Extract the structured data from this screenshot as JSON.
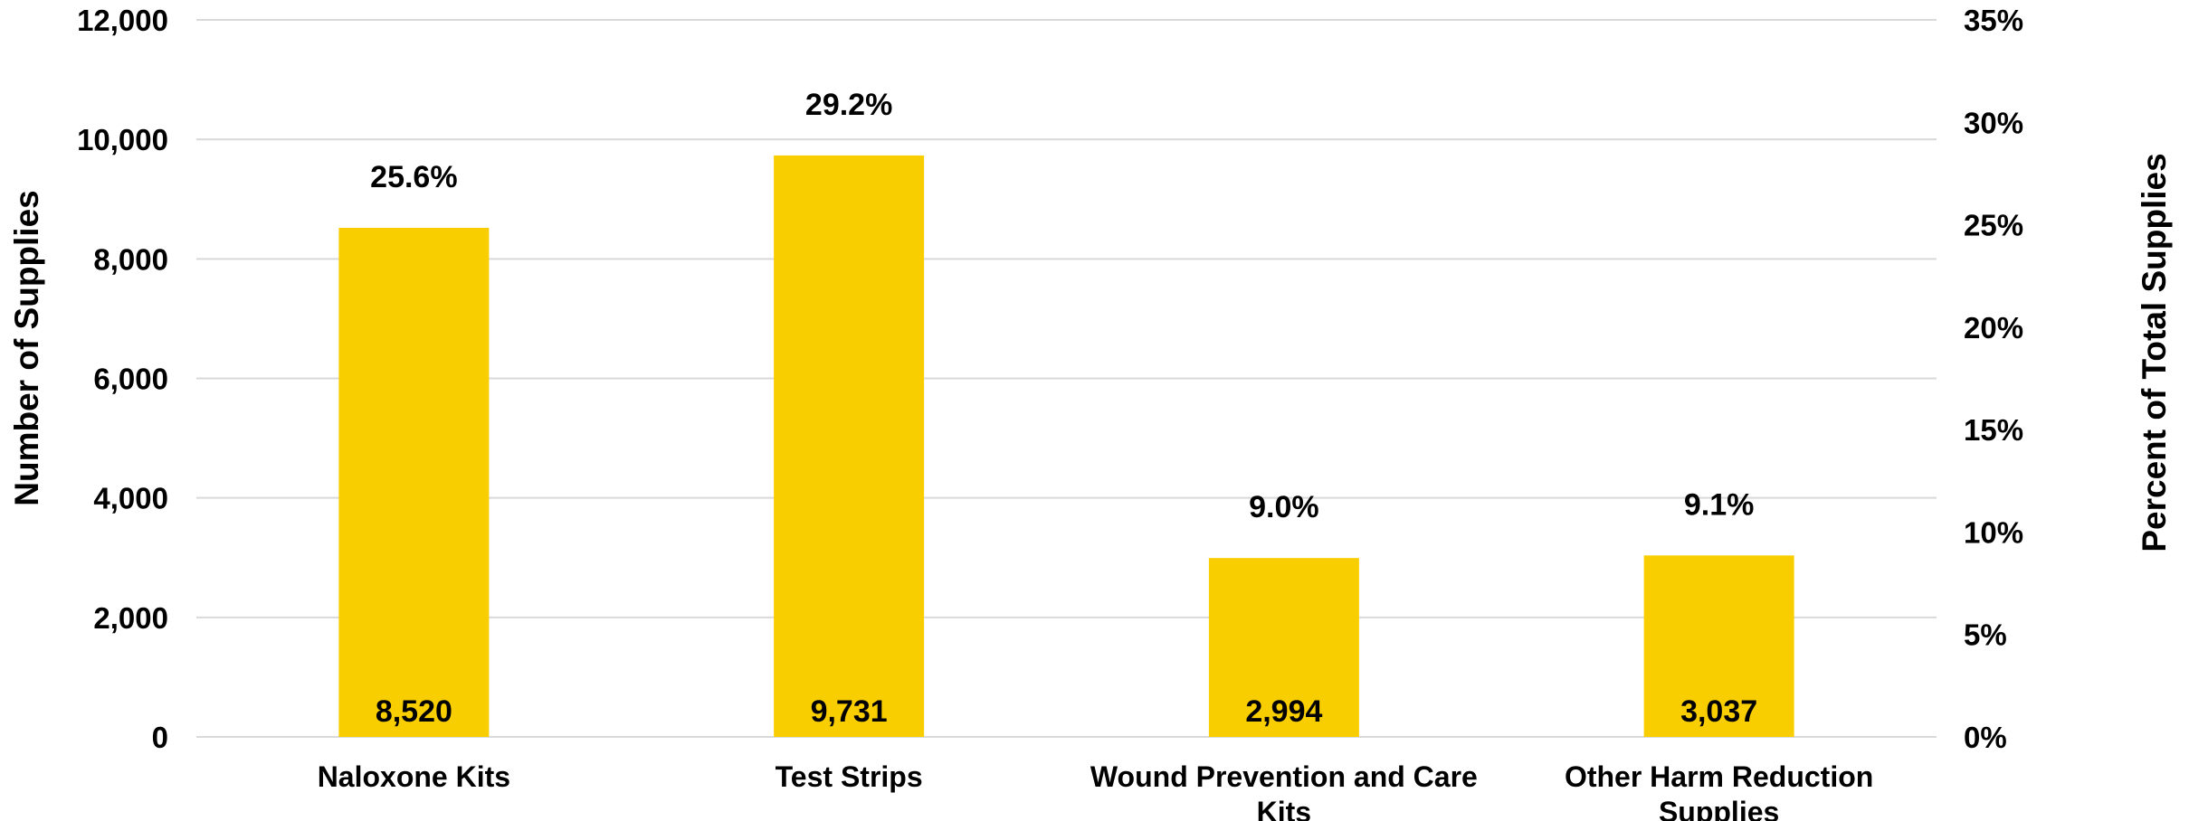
{
  "chart_data": {
    "type": "bar",
    "categories": [
      [
        "Naloxone Kits"
      ],
      [
        "Test Strips"
      ],
      [
        "Wound Prevention and Care",
        "Kits"
      ],
      [
        "Other Harm Reduction",
        "Supplies"
      ]
    ],
    "values": [
      8520,
      9731,
      2994,
      3037
    ],
    "value_labels": [
      "8,520",
      "9,731",
      "2,994",
      "3,037"
    ],
    "percent_labels": [
      "25.6%",
      "29.2%",
      "9.0%",
      "9.1%"
    ],
    "ylabel": "Number of Supplies",
    "y2label": "Percent of Total Supplies",
    "ylim": [
      0,
      12000
    ],
    "y_ticks": [
      "0",
      "2,000",
      "4,000",
      "6,000",
      "8,000",
      "10,000",
      "12,000"
    ],
    "y2lim": [
      0,
      35
    ],
    "y2_ticks": [
      "0%",
      "5%",
      "10%",
      "15%",
      "20%",
      "25%",
      "30%",
      "35%"
    ],
    "grid": true,
    "legend": "none",
    "colors": {
      "bar": "#F9CE00",
      "grid": "#d9d9d9",
      "text": "#000000"
    }
  }
}
